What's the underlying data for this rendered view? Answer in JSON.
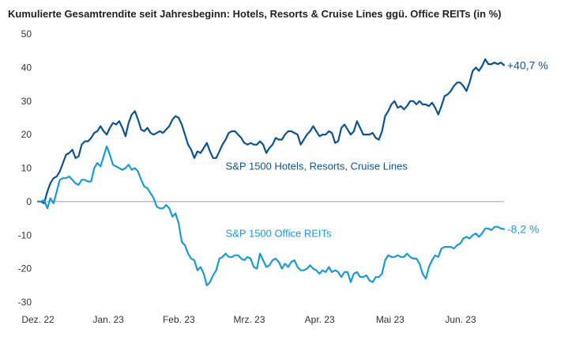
{
  "chart_data": {
    "type": "line",
    "title": "Kumulierte Gesamtrendite seit Jahresbeginn:  Hotels, Resorts & Cruise Lines ggü. Office REITs (in %)",
    "ylim": [
      -30,
      50
    ],
    "yticks": [
      "50",
      "40",
      "30",
      "20",
      "10",
      "0",
      "-10",
      "-20",
      "-30"
    ],
    "xticks": [
      "Dez. 22",
      "Jan. 23",
      "Feb. 23",
      "Mrz. 23",
      "Apr. 23",
      "Mai 23",
      "Jun. 23"
    ],
    "grid": false,
    "series": [
      {
        "name": "S&P 1500 Hotels, Resorts, Cruise Lines",
        "color": "#0b5394",
        "end_label": "+40,7 %",
        "x": [
          0,
          1,
          2,
          3,
          4,
          5,
          6,
          7,
          8,
          9,
          10,
          11,
          12,
          13,
          14,
          15,
          16,
          17,
          18,
          19,
          20,
          21,
          22,
          23,
          24,
          25,
          26,
          27,
          28,
          29,
          30,
          31,
          32,
          33,
          34,
          35,
          36,
          37,
          38,
          39,
          40,
          41,
          42,
          43,
          44,
          45,
          46,
          47,
          48,
          49,
          50,
          51,
          52,
          53,
          54,
          55,
          56,
          57,
          58,
          59,
          60,
          61,
          62,
          63,
          64,
          65,
          66,
          67,
          68,
          69,
          70,
          71,
          72,
          73,
          74,
          75,
          76,
          77,
          78,
          79,
          80,
          81,
          82,
          83,
          84,
          85,
          86,
          87,
          88,
          89,
          90,
          91,
          92,
          93,
          94,
          95,
          96,
          97,
          98,
          99,
          100,
          101,
          102,
          103,
          104,
          105,
          106,
          107,
          108,
          109,
          110,
          111,
          112,
          113,
          114,
          115,
          116,
          117,
          118,
          119,
          120,
          121,
          122,
          123,
          124,
          125,
          126,
          127,
          128,
          129,
          130,
          131,
          132,
          133,
          134,
          135,
          136,
          137,
          138,
          139,
          140,
          141,
          142,
          143,
          144,
          145,
          146,
          147,
          148,
          149
        ],
        "values": [
          0,
          0,
          -0.5,
          3,
          5.5,
          7,
          7.5,
          9,
          11.5,
          14,
          14.5,
          15.5,
          13,
          13.5,
          17,
          18,
          18,
          19,
          20.5,
          21,
          22.5,
          21,
          20,
          22,
          23.5,
          23,
          24,
          22,
          19.5,
          23.5,
          26,
          27,
          24.5,
          21.5,
          21,
          22,
          20.5,
          20,
          20.5,
          21,
          20.5,
          21.5,
          22.5,
          24.5,
          25.5,
          25,
          23,
          20,
          17,
          15.5,
          13,
          15,
          14.5,
          16,
          17.5,
          15,
          13,
          13,
          15,
          17,
          18.5,
          20.5,
          21,
          21,
          20,
          19,
          17.5,
          17,
          17.5,
          17,
          17,
          18,
          17,
          14.5,
          16,
          17,
          19,
          18.5,
          18.5,
          20,
          21,
          21,
          20.5,
          20,
          17,
          18.5,
          20,
          21,
          22.5,
          21,
          19.5,
          20,
          20,
          21,
          20.5,
          17.5,
          18,
          22,
          23,
          21.5,
          20,
          21,
          24,
          22,
          20,
          20,
          20,
          20.5,
          19,
          18.5,
          21,
          25.5,
          27,
          29,
          30,
          28,
          28.5,
          27.5,
          28.5,
          30,
          30,
          29,
          30,
          29,
          29,
          28.5,
          29.5,
          28,
          26,
          28.5,
          31.5,
          32,
          33,
          34.5,
          35.5,
          35.5,
          34.5,
          33,
          35.5,
          39,
          40,
          39,
          40.5,
          42.5,
          41,
          41,
          41.5,
          41,
          41.5,
          40.7
        ]
      },
      {
        "name": "S&P 1500 Office REITs",
        "color": "#1a9ad6",
        "end_label": "-8,2 %",
        "x": [
          0,
          1,
          2,
          3,
          4,
          5,
          6,
          7,
          8,
          9,
          10,
          11,
          12,
          13,
          14,
          15,
          16,
          17,
          18,
          19,
          20,
          21,
          22,
          23,
          24,
          25,
          26,
          27,
          28,
          29,
          30,
          31,
          32,
          33,
          34,
          35,
          36,
          37,
          38,
          39,
          40,
          41,
          42,
          43,
          44,
          45,
          46,
          47,
          48,
          49,
          50,
          51,
          52,
          53,
          54,
          55,
          56,
          57,
          58,
          59,
          60,
          61,
          62,
          63,
          64,
          65,
          66,
          67,
          68,
          69,
          70,
          71,
          72,
          73,
          74,
          75,
          76,
          77,
          78,
          79,
          80,
          81,
          82,
          83,
          84,
          85,
          86,
          87,
          88,
          89,
          90,
          91,
          92,
          93,
          94,
          95,
          96,
          97,
          98,
          99,
          100,
          101,
          102,
          103,
          104,
          105,
          106,
          107,
          108,
          109,
          110,
          111,
          112,
          113,
          114,
          115,
          116,
          117,
          118,
          119,
          120,
          121,
          122,
          123,
          124,
          125,
          126,
          127,
          128,
          129,
          130,
          131,
          132,
          133,
          134,
          135,
          136,
          137,
          138,
          139,
          140,
          141,
          142,
          143,
          144,
          145,
          146,
          147,
          148,
          149
        ],
        "values": [
          0,
          0,
          0.5,
          -2,
          1,
          -0.5,
          3,
          6.5,
          7,
          7,
          7.5,
          6.5,
          5.5,
          5,
          6.5,
          6.5,
          6,
          6,
          10,
          11.5,
          10.5,
          13.5,
          16.5,
          14,
          11,
          10.5,
          10,
          9.5,
          10,
          11,
          9.5,
          10,
          9,
          6.5,
          4.5,
          4,
          2.5,
          1,
          -1.5,
          -2,
          -2,
          -1,
          -2,
          -4.5,
          -3.5,
          -6.5,
          -12,
          -13,
          -15.5,
          -17,
          -17.5,
          -20.5,
          -19.5,
          -21.5,
          -25,
          -24,
          -22,
          -20.5,
          -17,
          -16.5,
          -15.5,
          -16.5,
          -16.5,
          -16,
          -16,
          -17,
          -17.5,
          -16.5,
          -17,
          -19.5,
          -20,
          -15.5,
          -17.5,
          -19.5,
          -19,
          -17.5,
          -17,
          -18,
          -20,
          -18.5,
          -19.5,
          -18,
          -17.5,
          -19.5,
          -20.5,
          -20.5,
          -20,
          -19,
          -20,
          -20.5,
          -21.5,
          -20.5,
          -21,
          -19.5,
          -21,
          -20.5,
          -21,
          -22.5,
          -21,
          -21,
          -24,
          -21.5,
          -21,
          -22.5,
          -22.5,
          -22,
          -23.5,
          -24,
          -22.5,
          -22.5,
          -21.5,
          -17.5,
          -16,
          -16.5,
          -16.5,
          -16,
          -16.5,
          -16.5,
          -15.5,
          -16.5,
          -17,
          -17,
          -18.5,
          -21.5,
          -23,
          -19.5,
          -17.5,
          -16,
          -16.5,
          -14,
          -13.5,
          -13.5,
          -13.5,
          -14,
          -13,
          -12.5,
          -11,
          -10.5,
          -11,
          -10,
          -9.5,
          -10.5,
          -9.5,
          -8,
          -8,
          -8.5,
          -7.5,
          -7.5,
          -8,
          -8.2
        ]
      }
    ],
    "annotations": [
      {
        "text": "S&P 1500 Hotels, Resorts, Cruise Lines",
        "x": 60,
        "y": 9.5,
        "series": 0
      },
      {
        "text": "S&P 1500 Office REITs",
        "x": 60,
        "y": -10.5,
        "series": 1
      }
    ]
  }
}
